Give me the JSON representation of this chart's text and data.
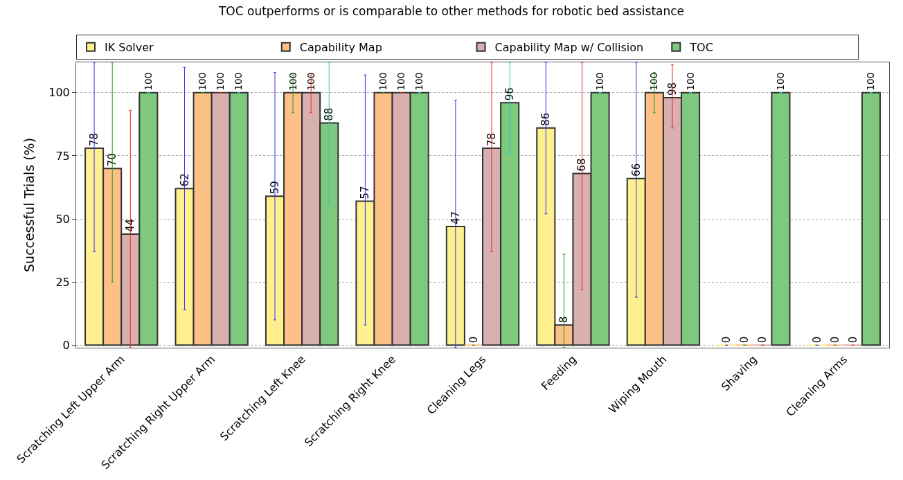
{
  "chart_data": {
    "type": "bar",
    "title": "TOC outperforms or is comparable to other methods for robotic bed assistance",
    "ylabel": "Successful Trials (%)",
    "categories": [
      "Scratching Left Upper Arm",
      "Scratching Right Upper Arm",
      "Scratching Left Knee",
      "Scratching Right Knee",
      "Cleaning Legs",
      "Feeding",
      "Wiping Mouth",
      "Shaving",
      "Cleaning Arms"
    ],
    "series": [
      {
        "name": "IK Solver",
        "color": "#fef08f",
        "values": [
          78,
          62,
          59,
          57,
          47,
          86,
          66,
          0,
          0
        ],
        "errors": [
          [
            37,
            112
          ],
          [
            14,
            110
          ],
          [
            10,
            108
          ],
          [
            8,
            107
          ],
          [
            -1,
            97
          ],
          [
            52,
            112
          ],
          [
            19,
            112
          ],
          null,
          null
        ]
      },
      {
        "name": "Capability Map",
        "color": "#fdc086",
        "values": [
          70,
          100,
          100,
          100,
          0,
          8,
          100,
          0,
          0
        ],
        "errors": [
          [
            25,
            112
          ],
          null,
          [
            92,
            107
          ],
          null,
          null,
          [
            -1,
            36
          ],
          [
            92,
            108
          ],
          null,
          null
        ]
      },
      {
        "name": "Capability Map w/ Collision",
        "color": "#d8b0b0",
        "values": [
          44,
          100,
          100,
          100,
          78,
          68,
          98,
          0,
          0
        ],
        "errors": [
          [
            -1,
            93
          ],
          null,
          [
            92,
            107
          ],
          null,
          [
            37,
            112
          ],
          [
            22,
            112
          ],
          [
            86,
            111
          ],
          null,
          null
        ]
      },
      {
        "name": "TOC",
        "color": "#7fc97f",
        "values": [
          100,
          100,
          88,
          100,
          96,
          100,
          100,
          100,
          100
        ],
        "errors": [
          null,
          null,
          [
            56,
            112
          ],
          null,
          [
            76,
            112
          ],
          null,
          null,
          null,
          null
        ]
      }
    ],
    "ylim": [
      -1,
      112
    ],
    "yticks": [
      0,
      25,
      50,
      75,
      100
    ],
    "grid": "y",
    "legend": "top",
    "data_labels": true
  }
}
